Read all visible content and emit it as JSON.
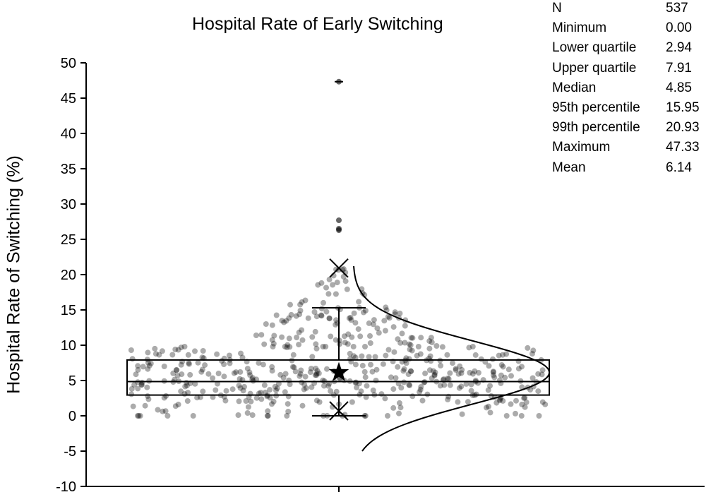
{
  "chart_data": {
    "type": "box-scatter",
    "title": "Hospital Rate of Early Switching",
    "ylabel": "Hospital Rate of Switching (%)",
    "xlabel": "",
    "ylim": [
      -10,
      50
    ],
    "yticks": [
      "50",
      "45",
      "40",
      "35",
      "30",
      "25",
      "20",
      "15",
      "10",
      "5",
      "0",
      "-5",
      "-10"
    ],
    "grid": false,
    "stats": [
      {
        "label": "N",
        "value": "537"
      },
      {
        "label": "Minimum",
        "value": "0.00"
      },
      {
        "label": "Lower quartile",
        "value": "2.94"
      },
      {
        "label": "Upper quartile",
        "value": "7.91"
      },
      {
        "label": "Median",
        "value": "4.85"
      },
      {
        "label": "95th percentile",
        "value": "15.95"
      },
      {
        "label": "99th percentile",
        "value": "20.93"
      },
      {
        "label": "Maximum",
        "value": "47.33"
      },
      {
        "label": "Mean",
        "value": "6.14"
      }
    ],
    "box": {
      "q1": 2.94,
      "median": 4.85,
      "q3": 7.91,
      "whisker_low": 0.0,
      "whisker_high": 15.3,
      "mean": 6.14,
      "p1_marker": 0.7,
      "p99_marker": 20.93,
      "max": 47.33
    },
    "outliers": [
      47.33,
      27.7,
      26.5,
      26.3
    ],
    "n_points": 537,
    "normal_curve": {
      "mean": 6.14,
      "sd": 4.5
    },
    "point_color": "#000000"
  }
}
